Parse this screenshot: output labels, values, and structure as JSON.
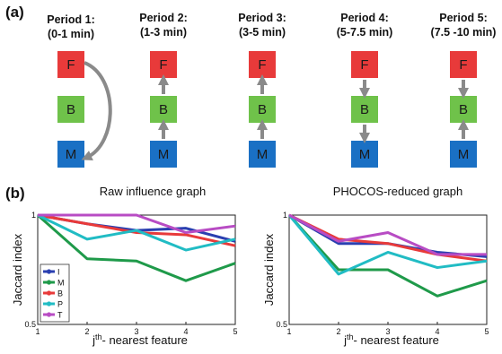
{
  "panel_a_label": "(a)",
  "panel_b_label": "(b)",
  "colors": {
    "F": "#e83a3a",
    "B": "#6fc24a",
    "M": "#1a70c4",
    "arrow": "#8a8a8a"
  },
  "periods": [
    {
      "title_line1": "Period 1:",
      "title_line2": "(0-1 min)"
    },
    {
      "title_line1": "Period 2:",
      "title_line2": "(1-3 min)"
    },
    {
      "title_line1": "Period 3:",
      "title_line2": "(3-5 min)"
    },
    {
      "title_line1": "Period 4:",
      "title_line2": "(5-7.5 min)"
    },
    {
      "title_line1": "Period 5:",
      "title_line2": "(7.5 -10 min)"
    }
  ],
  "node_labels": {
    "F": "F",
    "B": "B",
    "M": "M"
  },
  "chart_data": [
    {
      "type": "line",
      "title": "Raw influence graph",
      "xlabel": "jth- nearest feature",
      "xlabel_base": "j",
      "xlabel_sup": "th",
      "xlabel_rest": "- nearest feature",
      "ylabel": "Jaccard index",
      "x": [
        1,
        2,
        3,
        4,
        5
      ],
      "xticks": [
        "1",
        "2",
        "3",
        "4",
        "5"
      ],
      "yticks": [
        "1",
        "0.5"
      ],
      "ylim": [
        0.5,
        1.0
      ],
      "legend_position": "left",
      "series": [
        {
          "name": "I",
          "color": "#2a3fb0",
          "values": [
            1.0,
            0.96,
            0.93,
            0.94,
            0.88
          ]
        },
        {
          "name": "M",
          "color": "#1f9a4a",
          "values": [
            1.0,
            0.8,
            0.79,
            0.7,
            0.78
          ]
        },
        {
          "name": "B",
          "color": "#e83a3a",
          "values": [
            1.0,
            0.96,
            0.92,
            0.91,
            0.86
          ]
        },
        {
          "name": "P",
          "color": "#21bcc4",
          "values": [
            1.0,
            0.89,
            0.93,
            0.84,
            0.89
          ]
        },
        {
          "name": "T",
          "color": "#b84cc4",
          "values": [
            1.0,
            1.0,
            1.0,
            0.92,
            0.95
          ]
        }
      ]
    },
    {
      "type": "line",
      "title": "PHOCOS-reduced graph",
      "xlabel": "jth- nearest feature",
      "xlabel_base": "j",
      "xlabel_sup": "th",
      "xlabel_rest": "- nearest feature",
      "ylabel": "Jaccard index",
      "x": [
        1,
        2,
        3,
        4,
        5
      ],
      "xticks": [
        "1",
        "2",
        "3",
        "4",
        "5"
      ],
      "yticks": [
        "1",
        "0.5"
      ],
      "ylim": [
        0.5,
        1.0
      ],
      "series": [
        {
          "name": "I",
          "color": "#2a3fb0",
          "values": [
            1.0,
            0.87,
            0.87,
            0.83,
            0.81
          ]
        },
        {
          "name": "M",
          "color": "#1f9a4a",
          "values": [
            1.0,
            0.75,
            0.75,
            0.63,
            0.7
          ]
        },
        {
          "name": "B",
          "color": "#e83a3a",
          "values": [
            1.0,
            0.89,
            0.87,
            0.82,
            0.79
          ]
        },
        {
          "name": "P",
          "color": "#21bcc4",
          "values": [
            1.0,
            0.73,
            0.83,
            0.76,
            0.79
          ]
        },
        {
          "name": "T",
          "color": "#b84cc4",
          "values": [
            1.0,
            0.88,
            0.92,
            0.82,
            0.82
          ]
        }
      ]
    }
  ]
}
